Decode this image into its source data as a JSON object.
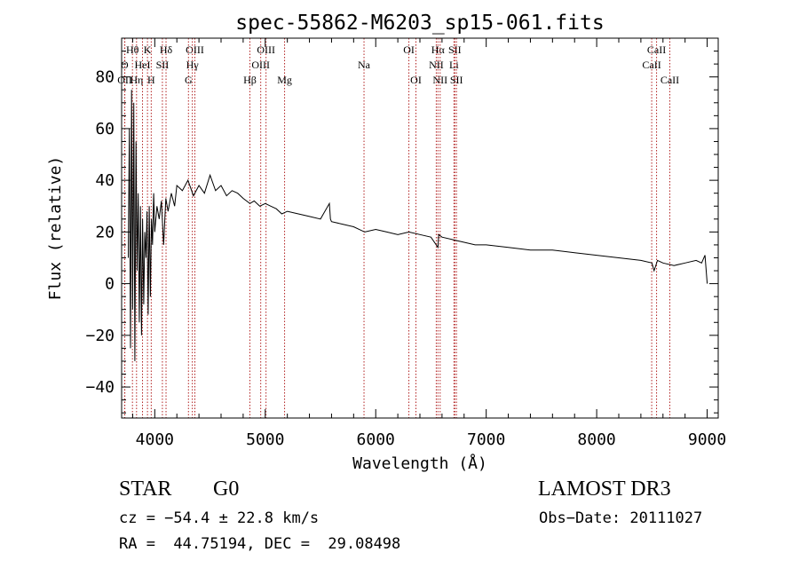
{
  "chart_data": {
    "type": "line",
    "title": "spec-55862-M6203_sp15-061.fits",
    "xlabel": "Wavelength (Å)",
    "ylabel": "Flux (relative)",
    "xlim": [
      3700,
      9100
    ],
    "ylim": [
      -52,
      95
    ],
    "x_ticks": [
      4000,
      5000,
      6000,
      7000,
      8000,
      9000
    ],
    "x_tick_labels": [
      "4000",
      "5000",
      "6000",
      "7000",
      "8000",
      "9000"
    ],
    "y_ticks": [
      -40,
      -20,
      0,
      20,
      40,
      60,
      80
    ],
    "y_tick_labels": [
      "−40",
      "−20",
      "0",
      "20",
      "40",
      "60",
      "80"
    ],
    "series": [
      {
        "name": "flux",
        "x": [
          3760,
          3770,
          3780,
          3790,
          3800,
          3810,
          3820,
          3830,
          3840,
          3850,
          3860,
          3870,
          3880,
          3890,
          3900,
          3910,
          3920,
          3930,
          3940,
          3950,
          3960,
          3970,
          3980,
          3990,
          4000,
          4020,
          4040,
          4060,
          4080,
          4100,
          4120,
          4150,
          4180,
          4200,
          4250,
          4300,
          4350,
          4400,
          4450,
          4500,
          4550,
          4600,
          4650,
          4700,
          4750,
          4800,
          4861,
          4900,
          4950,
          5000,
          5050,
          5100,
          5150,
          5200,
          5300,
          5400,
          5500,
          5580,
          5590,
          5600,
          5700,
          5800,
          5900,
          6000,
          6100,
          6200,
          6300,
          6400,
          6500,
          6563,
          6570,
          6600,
          6700,
          6800,
          6900,
          7000,
          7200,
          7400,
          7600,
          7800,
          8000,
          8200,
          8400,
          8500,
          8520,
          8550,
          8600,
          8700,
          8800,
          8900,
          8950,
          8980,
          9000
        ],
        "y": [
          10,
          60,
          -25,
          75,
          -10,
          70,
          -30,
          55,
          5,
          35,
          -15,
          30,
          -20,
          25,
          -8,
          20,
          10,
          28,
          -12,
          30,
          -5,
          25,
          15,
          35,
          20,
          30,
          25,
          32,
          15,
          33,
          28,
          35,
          30,
          38,
          36,
          40,
          34,
          38,
          35,
          42,
          36,
          38,
          34,
          36,
          35,
          33,
          31,
          32,
          30,
          31,
          30,
          29,
          27,
          28,
          27,
          26,
          25,
          31,
          25,
          24,
          23,
          22,
          20,
          21,
          20,
          19,
          20,
          19,
          18,
          14,
          19,
          18,
          17,
          16,
          15,
          15,
          14,
          13,
          13,
          12,
          11,
          10,
          9,
          8,
          5,
          9,
          8,
          7,
          8,
          9,
          8,
          11,
          0
        ]
      }
    ],
    "lines": [
      {
        "name": "Hθ",
        "x": 3798,
        "row": 1
      },
      {
        "name": "O",
        "x": 3727,
        "row": 2
      },
      {
        "name": "OII",
        "x": 3729,
        "row": 3
      },
      {
        "name": "Hη",
        "x": 3835,
        "row": 3
      },
      {
        "name": "K",
        "x": 3934,
        "row": 1
      },
      {
        "name": "HeI",
        "x": 3889,
        "row": 2
      },
      {
        "name": "H",
        "x": 3968,
        "row": 3
      },
      {
        "name": "Hδ",
        "x": 4102,
        "row": 1
      },
      {
        "name": "SII",
        "x": 4069,
        "row": 2
      },
      {
        "name": "OIII",
        "x": 4363,
        "row": 1
      },
      {
        "name": "Hγ",
        "x": 4340,
        "row": 2
      },
      {
        "name": "G",
        "x": 4305,
        "row": 3
      },
      {
        "name": "OIII",
        "x": 5007,
        "row": 1
      },
      {
        "name": "OIII",
        "x": 4959,
        "row": 2
      },
      {
        "name": "Hβ",
        "x": 4861,
        "row": 3
      },
      {
        "name": "Mg",
        "x": 5175,
        "row": 3
      },
      {
        "name": "Na",
        "x": 5894,
        "row": 2
      },
      {
        "name": "OI",
        "x": 6300,
        "row": 1
      },
      {
        "name": "OI",
        "x": 6364,
        "row": 3
      },
      {
        "name": "Hα",
        "x": 6563,
        "row": 1
      },
      {
        "name": "SII",
        "x": 6716,
        "row": 1
      },
      {
        "name": "NII",
        "x": 6548,
        "row": 2
      },
      {
        "name": "Li",
        "x": 6708,
        "row": 2
      },
      {
        "name": "NII",
        "x": 6583,
        "row": 3
      },
      {
        "name": "SII",
        "x": 6731,
        "row": 3
      },
      {
        "name": "CaII",
        "x": 8542,
        "row": 1
      },
      {
        "name": "CaII",
        "x": 8498,
        "row": 2
      },
      {
        "name": "CaII",
        "x": 8662,
        "row": 3
      }
    ],
    "grid": false,
    "legend": "none"
  },
  "footer": {
    "class_label": "STAR",
    "subclass_label": "G0",
    "survey_label": "LAMOST DR3",
    "cz_text": "cz = −54.4 ± 22.8 km/s",
    "obs_date_text": "Obs−Date: 20111027",
    "coords_text": "RA =  44.75194, DEC =  29.08498"
  }
}
